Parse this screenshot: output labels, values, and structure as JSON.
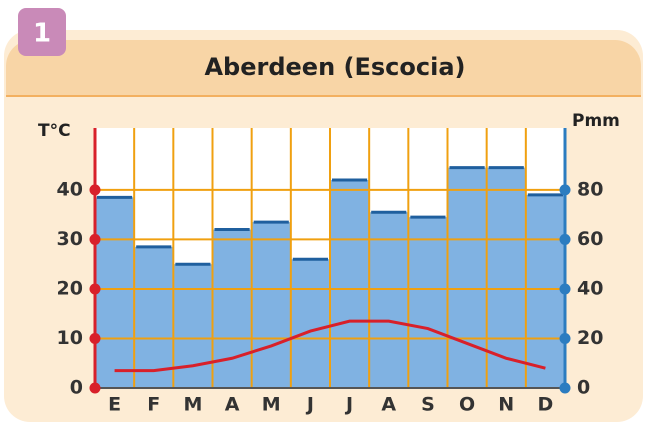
{
  "chart_data": {
    "type": "bar",
    "badge": "1",
    "title": "Aberdeen (Escocia)",
    "y_label": "T°C",
    "y2_label": "Pmm",
    "categories": [
      "E",
      "F",
      "M",
      "A",
      "M",
      "J",
      "J",
      "A",
      "S",
      "O",
      "N",
      "D"
    ],
    "series": [
      {
        "type": "bar",
        "axis": "y2",
        "color": "#80b2e2",
        "values": [
          77,
          57,
          50,
          64,
          67,
          52,
          84,
          71,
          69,
          89,
          89,
          78
        ]
      },
      {
        "type": "line",
        "axis": "y",
        "color": "#d8202a",
        "values": [
          3.5,
          3.5,
          4.5,
          6,
          8.5,
          11.5,
          13.5,
          13.5,
          12,
          9,
          6,
          4
        ]
      }
    ],
    "ylim": [
      0,
      52.5
    ],
    "yticks": [
      0,
      10,
      20,
      30,
      40
    ],
    "y2lim": [
      0,
      105
    ],
    "y2ticks": [
      0,
      20,
      40,
      60,
      80
    ],
    "grid": true
  }
}
